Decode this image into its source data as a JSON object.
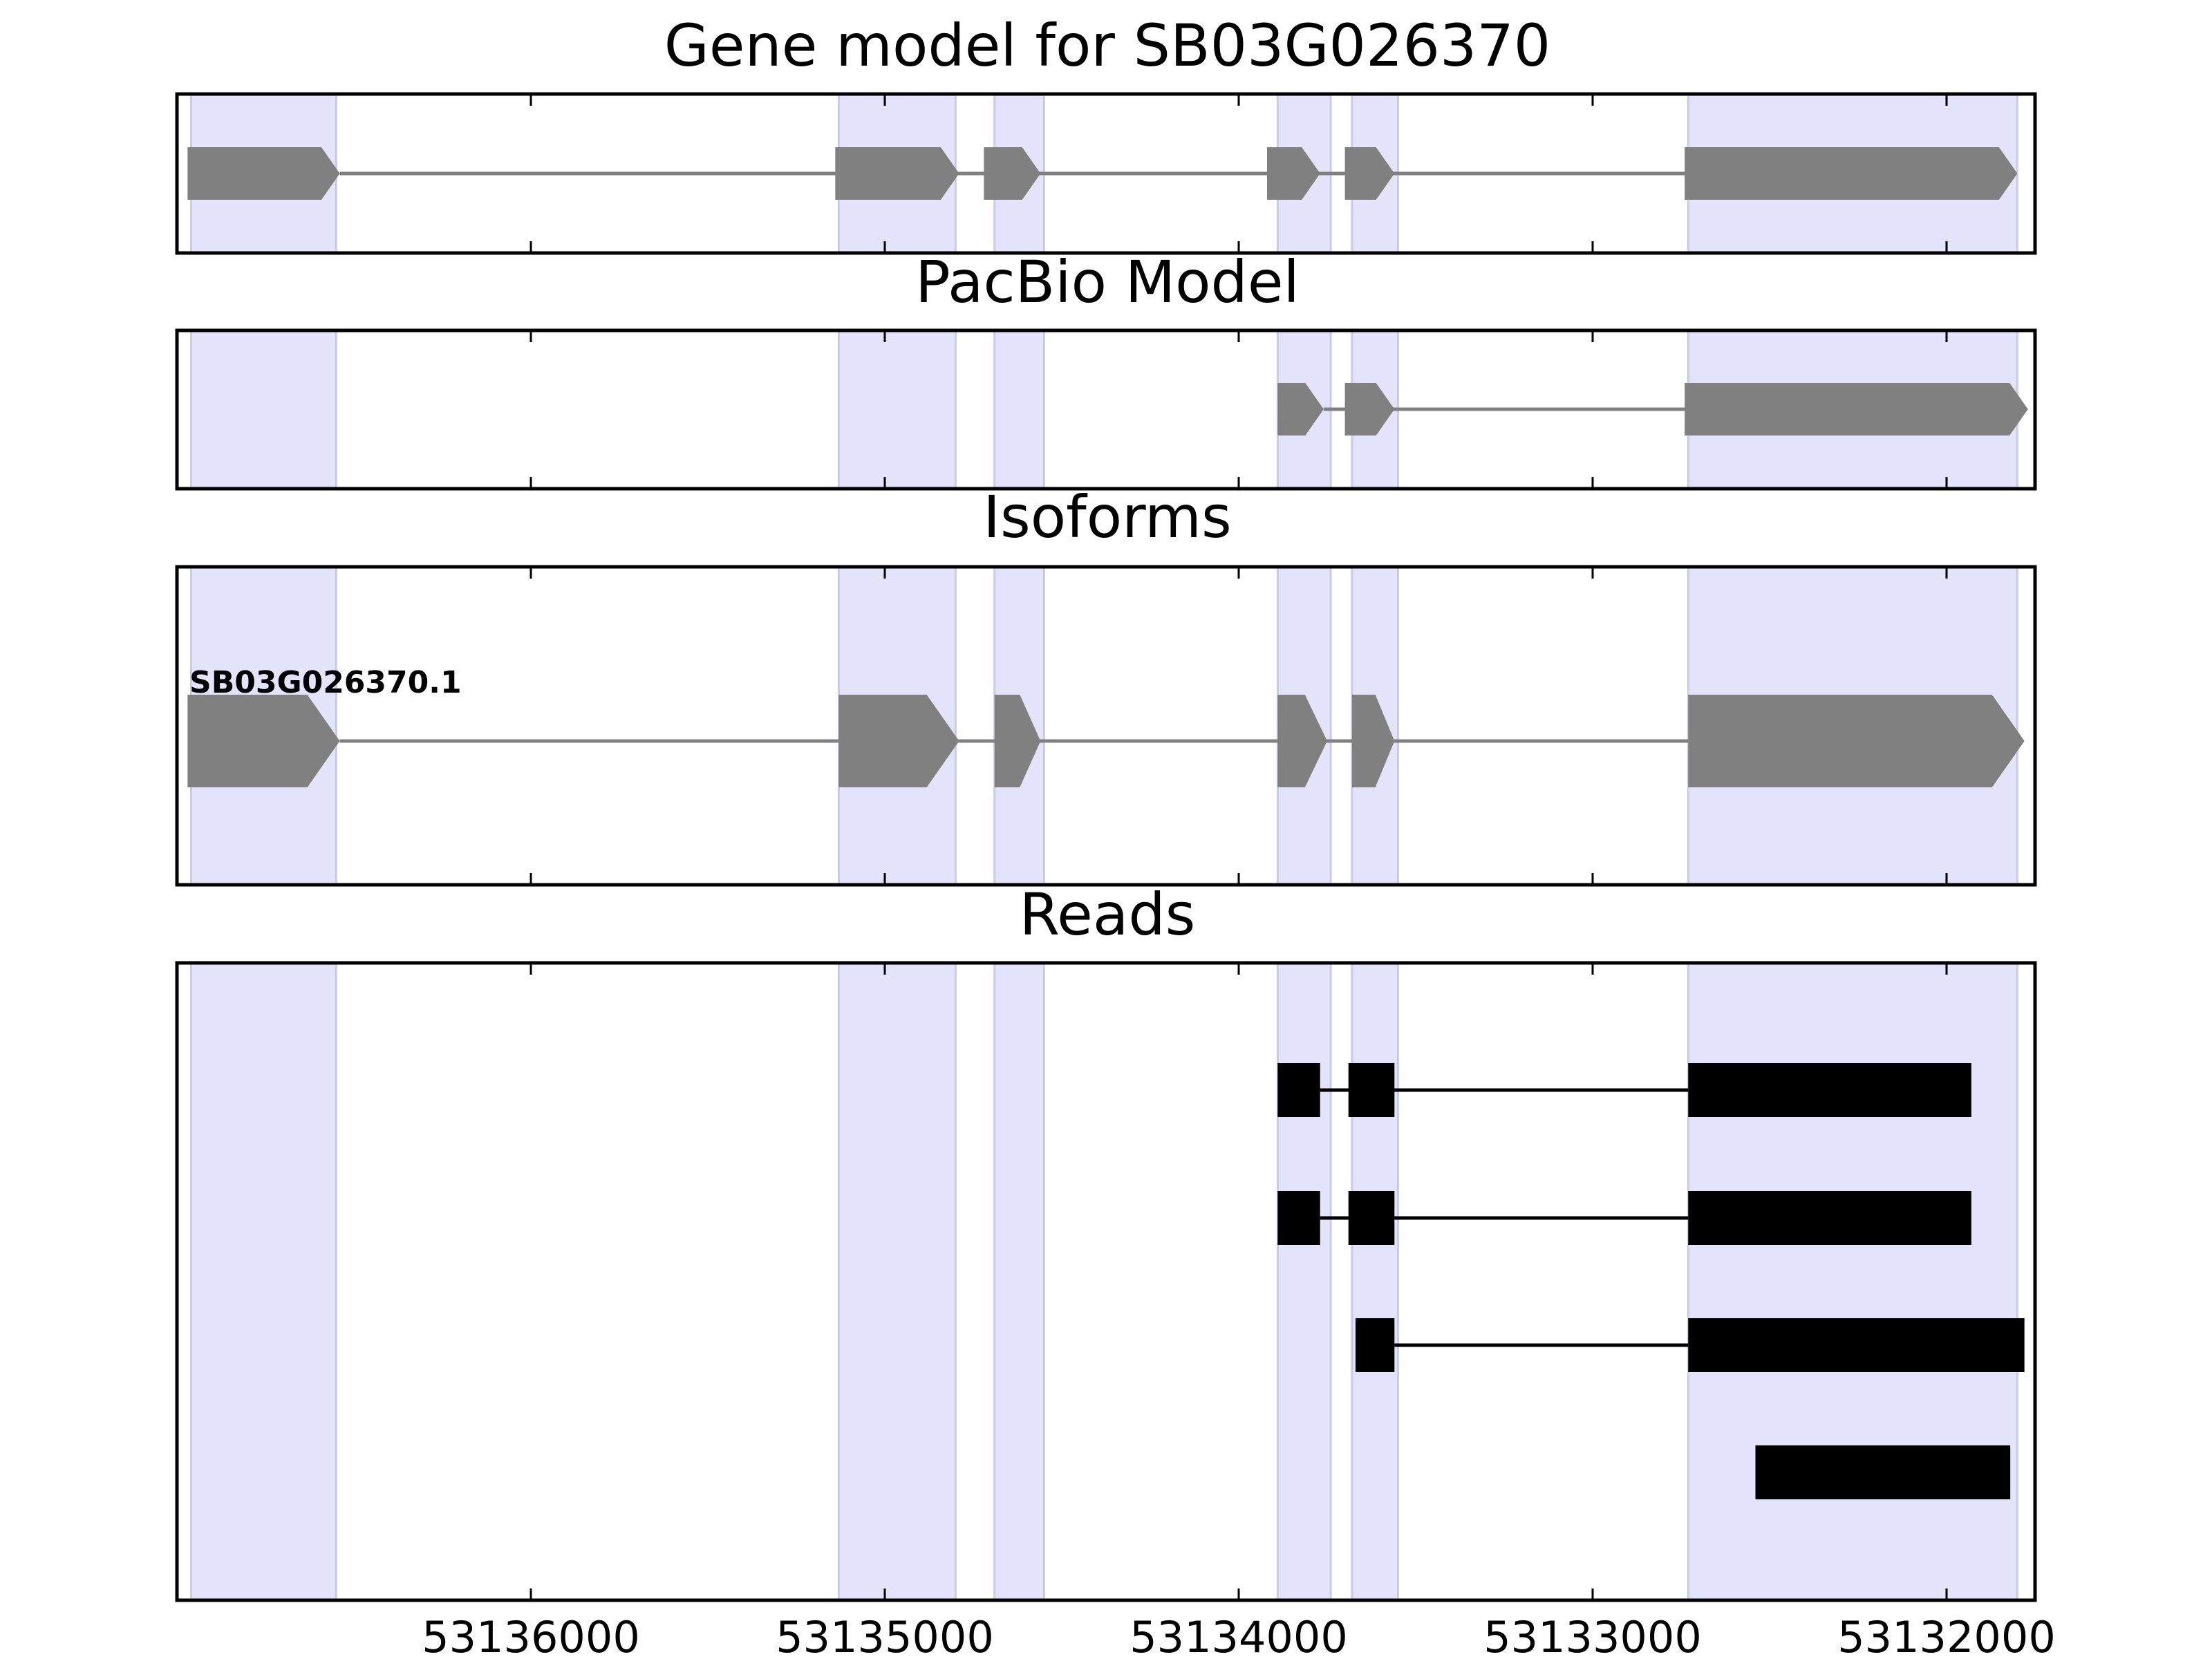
{
  "colors": {
    "exon_region": "#e3e3fc",
    "exon_region_edge": "#c9cbee",
    "model_fill": "#808080",
    "intron_line": "#808080",
    "read_fill": "#000000",
    "axis": "#000000"
  },
  "chart_data": {
    "type": "gene-structure",
    "genomic_range": [
      53131750,
      53137000
    ],
    "x_axis_reversed": true,
    "x_ticks": [
      {
        "value": 53136000,
        "label": "53136000"
      },
      {
        "value": 53135000,
        "label": "53135000"
      },
      {
        "value": 53134000,
        "label": "53134000"
      },
      {
        "value": 53133000,
        "label": "53133000"
      },
      {
        "value": 53132000,
        "label": "53132000"
      }
    ],
    "exon_regions": [
      [
        53136550,
        53136960
      ],
      [
        53134800,
        53135130
      ],
      [
        53134550,
        53134690
      ],
      [
        53133740,
        53133890
      ],
      [
        53133550,
        53133680
      ],
      [
        53131800,
        53132730
      ]
    ],
    "panels": [
      {
        "id": "gene-model",
        "title": "Gene model for SB03G026370",
        "rows": [
          {
            "style": "arrow",
            "exons": [
              [
                53136540,
                53136970
              ],
              [
                53134790,
                53135140
              ],
              [
                53134560,
                53134720
              ],
              [
                53133770,
                53133920
              ],
              [
                53133560,
                53133700
              ],
              [
                53131800,
                53132740
              ]
            ]
          }
        ]
      },
      {
        "id": "pacbio-model",
        "title": "PacBio Model",
        "rows": [
          {
            "style": "arrow",
            "exons": [
              [
                53133760,
                53133890
              ],
              [
                53133560,
                53133700
              ],
              [
                53131770,
                53132740
              ]
            ]
          }
        ]
      },
      {
        "id": "isoforms",
        "title": "Isoforms",
        "rows": [
          {
            "style": "arrow",
            "label": "SB03G026370.1",
            "exons": [
              [
                53136540,
                53136970
              ],
              [
                53134790,
                53135130
              ],
              [
                53134560,
                53134690
              ],
              [
                53133750,
                53133890
              ],
              [
                53133560,
                53133680
              ],
              [
                53131780,
                53132730
              ]
            ]
          }
        ]
      },
      {
        "id": "reads",
        "title": "Reads",
        "rows": [
          {
            "style": "block",
            "exons": [
              [
                53133770,
                53133890
              ],
              [
                53133560,
                53133690
              ],
              [
                53131930,
                53132730
              ]
            ]
          },
          {
            "style": "block",
            "exons": [
              [
                53133770,
                53133890
              ],
              [
                53133560,
                53133690
              ],
              [
                53131930,
                53132730
              ]
            ]
          },
          {
            "style": "block",
            "exons": [
              [
                53133560,
                53133670
              ],
              [
                53131780,
                53132730
              ]
            ]
          },
          {
            "style": "block",
            "exons": [
              [
                53131820,
                53132540
              ]
            ]
          }
        ]
      }
    ]
  }
}
